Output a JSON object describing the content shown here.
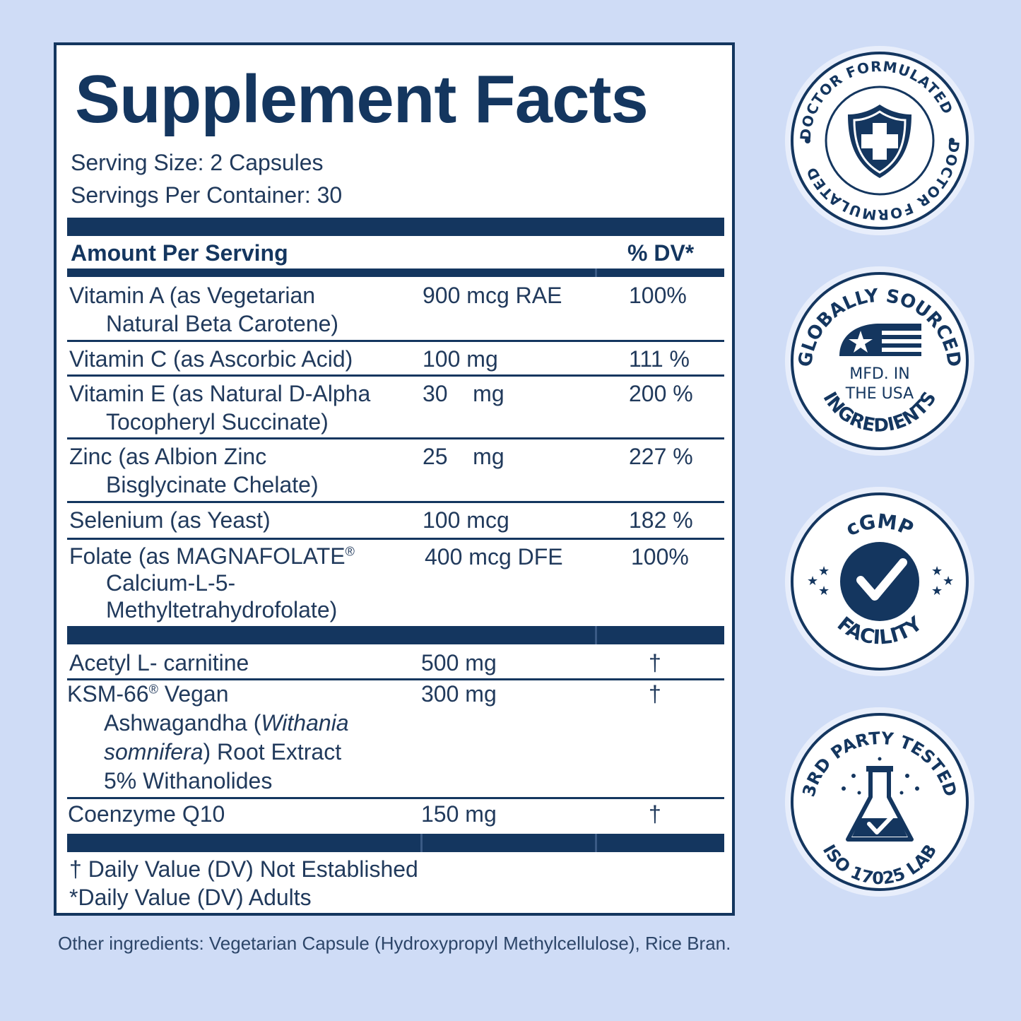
{
  "panel": {
    "title": "Supplement Facts",
    "serving_size": "Serving Size:  2 Capsules",
    "servings_per_container": "Servings Per Container:  30",
    "header_amount": "Amount Per Serving",
    "header_dv": "% DV*"
  },
  "nutrients": [
    {
      "name_lines": [
        "Vitamin A (as Vegetarian",
        "Natural Beta Carotene)"
      ],
      "amount": "900 mcg RAE",
      "dv": "100%"
    },
    {
      "name_lines": [
        "Vitamin C (as Ascorbic Acid)"
      ],
      "amount": "100 mg",
      "dv": "111 %"
    },
    {
      "name_lines": [
        "Vitamin E (as Natural D-Alpha",
        "Tocopheryl Succinate)"
      ],
      "amount": "30    mg",
      "dv": "200 %"
    },
    {
      "name_lines": [
        "Zinc (as Albion Zinc",
        "Bisglycinate Chelate)"
      ],
      "amount": "25    mg",
      "dv": "227 %"
    },
    {
      "name_lines": [
        "Selenium (as Yeast)"
      ],
      "amount": "100 mcg",
      "dv": "182 %"
    },
    {
      "name_lines": [
        "Folate (as MAGNAFOLATE",
        "Calcium-L-5-",
        "Methyltetrahydrofolate)"
      ],
      "amount": "400 mcg DFE",
      "dv": "100%"
    }
  ],
  "others": [
    {
      "name_lines": [
        "Acetyl L- carnitine"
      ],
      "amount": "500 mg",
      "dv": "†"
    },
    {
      "name_lines": [
        "KSM-66",
        "Ashwagandha (Withania",
        "somnifera) Root Extract",
        "5% Withanolides"
      ],
      "amount": "300 mg",
      "dv": "†"
    },
    {
      "name_lines": [
        "Coenzyme Q10"
      ],
      "amount": "150 mg",
      "dv": "†"
    }
  ],
  "ksm_suffix": "  Vegan",
  "registered_mark": "®",
  "footnotes": {
    "dagger": "† Daily Value (DV) Not Established",
    "star": "*Daily Value (DV) Adults"
  },
  "other_ingredients": "Other ingredients: Vegetarian Capsule (Hydroxypropyl Methylcellulose), Rice Bran.",
  "badges": {
    "doctor": {
      "ring_text": "DOCTOR FORMULATED",
      "icon": "shield-cross-icon"
    },
    "global": {
      "top": "GLOBALLY SOURCED",
      "bottom": "INGREDIENTS",
      "line1": "MFD. IN",
      "line2": "THE USA",
      "icon": "flag-icon"
    },
    "cgmp": {
      "top": "cGMP",
      "bottom": "FACILITY",
      "icon": "checkmark-icon"
    },
    "lab": {
      "top": "3RD PARTY TESTED",
      "bottom": "ISO 17025 LAB",
      "icon": "flask-icon"
    }
  },
  "colors": {
    "navy": "#14365f",
    "background": "#cfdcf6",
    "text": "#213a5c"
  }
}
